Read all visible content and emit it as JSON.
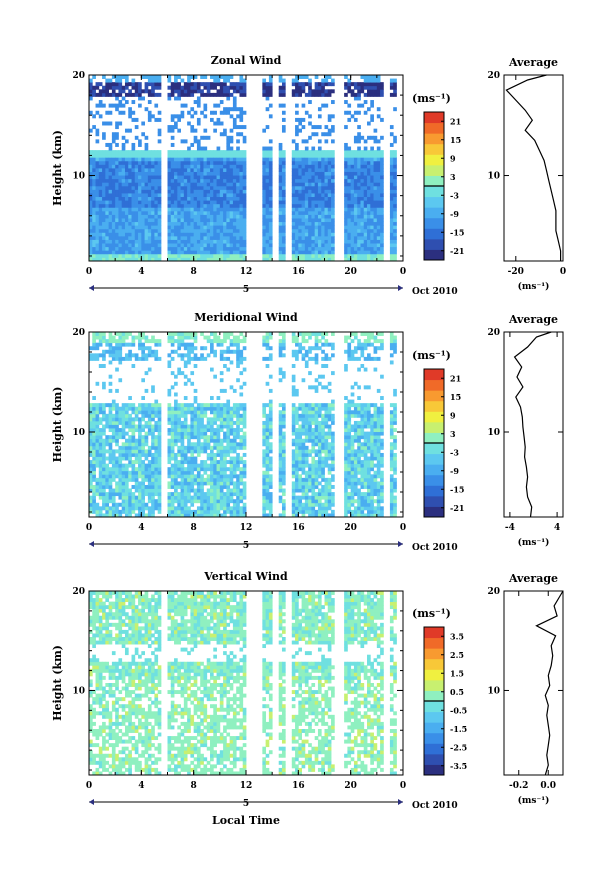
{
  "figure": {
    "date_label": "Oct 2010",
    "day_label": "5",
    "xlabel": "Local Time",
    "ylabel": "Height (km)",
    "unit_label": "(ms⁻¹)",
    "avg_title": "Average"
  },
  "chart_data": [
    {
      "type": "heatmap",
      "title": "Zonal Wind",
      "xlabel": "",
      "ylabel": "Height (km)",
      "x_ticks": [
        "0",
        "4",
        "8",
        "12",
        "16",
        "20",
        "0"
      ],
      "x_range": [
        0,
        24
      ],
      "y_ticks": [
        "10",
        "20"
      ],
      "y_range": [
        1.5,
        20
      ],
      "colorbar": {
        "label": "(ms⁻¹)",
        "ticks": [
          "21",
          "15",
          "9",
          "3",
          "-3",
          "-9",
          "-15",
          "-21"
        ],
        "range": [
          -24,
          24
        ]
      },
      "profile": {
        "title": "Average",
        "xlabel": "(ms⁻¹)",
        "x_ticks": [
          "-20",
          "0"
        ],
        "x_range": [
          -25,
          0
        ],
        "heights": [
          1.5,
          2.5,
          3.5,
          4.5,
          5.5,
          6.5,
          7.5,
          8.5,
          9.5,
          10.5,
          11.5,
          12.5,
          13.5,
          14.5,
          15.5,
          16.5,
          17.5,
          18.5,
          19.5,
          20.0
        ],
        "values": [
          -1,
          -1,
          -2,
          -3,
          -3,
          -3,
          -4,
          -5,
          -6,
          -7,
          -8,
          -10,
          -12,
          -16,
          -13,
          -16,
          -20,
          -24,
          -15,
          -7
        ]
      }
    },
    {
      "type": "heatmap",
      "title": "Meridional Wind",
      "xlabel": "",
      "ylabel": "Height (km)",
      "x_ticks": [
        "0",
        "4",
        "8",
        "12",
        "16",
        "20",
        "0"
      ],
      "x_range": [
        0,
        24
      ],
      "y_ticks": [
        "10",
        "20"
      ],
      "y_range": [
        1.5,
        20
      ],
      "colorbar": {
        "label": "(ms⁻¹)",
        "ticks": [
          "21",
          "15",
          "9",
          "3",
          "-3",
          "-9",
          "-15",
          "-21"
        ],
        "range": [
          -24,
          24
        ]
      },
      "profile": {
        "title": "Average",
        "xlabel": "(ms⁻¹)",
        "x_ticks": [
          "-4",
          "4"
        ],
        "x_range": [
          -5,
          5
        ],
        "heights": [
          1.5,
          2.5,
          3.5,
          4.5,
          5.5,
          6.5,
          7.5,
          8.5,
          9.5,
          10.5,
          11.5,
          12.5,
          13.5,
          14.5,
          15.5,
          16.5,
          17.5,
          18.5,
          19.5,
          20.0
        ],
        "values": [
          -0.5,
          -0.3,
          -1,
          -1.2,
          -1,
          -1.2,
          -1.5,
          -1.4,
          -1.6,
          -1.8,
          -1.9,
          -2.2,
          -3,
          -1.8,
          -2.8,
          -2,
          -3.2,
          -1,
          0.5,
          3
        ]
      }
    },
    {
      "type": "heatmap",
      "title": "Vertical Wind",
      "xlabel": "Local Time",
      "ylabel": "Height (km)",
      "x_ticks": [
        "0",
        "4",
        "8",
        "12",
        "16",
        "20",
        "0"
      ],
      "x_range": [
        0,
        24
      ],
      "y_ticks": [
        "10",
        "20"
      ],
      "y_range": [
        1.5,
        20
      ],
      "colorbar": {
        "label": "(ms⁻¹)",
        "ticks": [
          "3.5",
          "2.5",
          "1.5",
          "0.5",
          "-0.5",
          "-1.5",
          "-2.5",
          "-3.5"
        ],
        "range": [
          -4,
          4
        ]
      },
      "profile": {
        "title": "Average",
        "xlabel": "(ms⁻¹)",
        "x_ticks": [
          "-0.2",
          "0.0"
        ],
        "x_range": [
          -0.3,
          0.1
        ],
        "heights": [
          1.5,
          2.5,
          3.5,
          4.5,
          5.5,
          6.5,
          7.5,
          8.5,
          9.5,
          10.5,
          11.5,
          12.5,
          13.5,
          14.5,
          15.5,
          16.5,
          17.5,
          18.5,
          19.5,
          20.0
        ],
        "values": [
          -0.02,
          0.0,
          -0.01,
          0.0,
          0.01,
          0.0,
          -0.01,
          0.0,
          -0.02,
          0.01,
          0.0,
          0.02,
          0.03,
          0.02,
          0.05,
          -0.08,
          0.06,
          0.04,
          0.08,
          0.1
        ]
      }
    }
  ]
}
